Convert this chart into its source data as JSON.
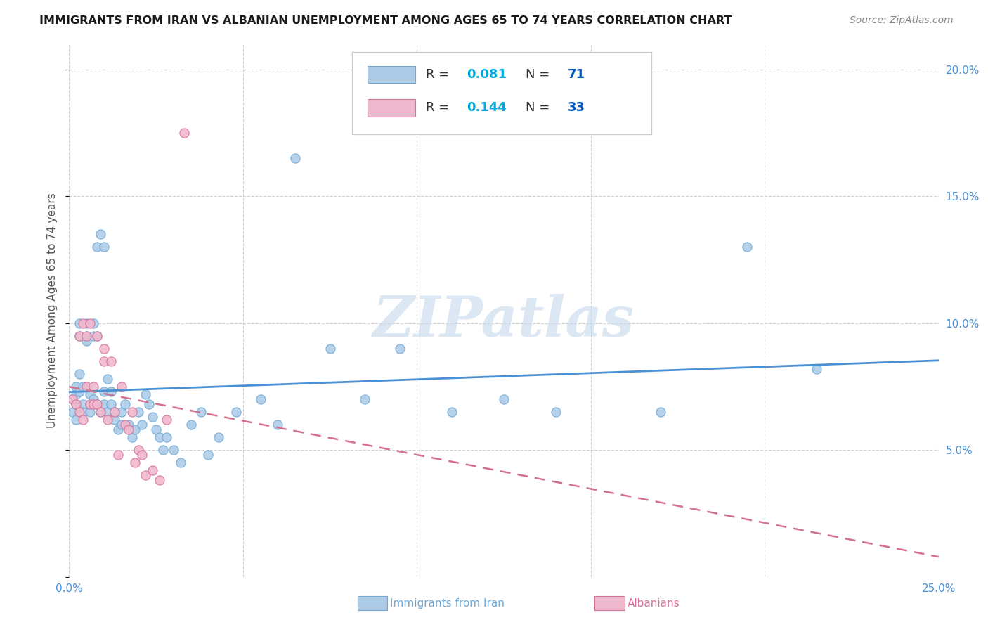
{
  "title": "IMMIGRANTS FROM IRAN VS ALBANIAN UNEMPLOYMENT AMONG AGES 65 TO 74 YEARS CORRELATION CHART",
  "source": "Source: ZipAtlas.com",
  "ylabel": "Unemployment Among Ages 65 to 74 years",
  "xlim": [
    0.0,
    0.25
  ],
  "ylim": [
    0.0,
    0.21
  ],
  "x_ticks": [
    0.0,
    0.05,
    0.1,
    0.15,
    0.2,
    0.25
  ],
  "y_ticks": [
    0.0,
    0.05,
    0.1,
    0.15,
    0.2
  ],
  "legend1_r": "0.081",
  "legend1_n": "71",
  "legend2_r": "0.144",
  "legend2_n": "33",
  "iran_fill": "#aecce8",
  "iran_edge": "#6fa8d4",
  "alb_fill": "#f0b8cc",
  "alb_edge": "#d4709a",
  "iran_line_color": "#4a90d4",
  "alb_line_color": "#d47090",
  "watermark": "ZIPatlas",
  "iran_x": [
    0.001,
    0.001,
    0.002,
    0.002,
    0.002,
    0.002,
    0.003,
    0.003,
    0.003,
    0.003,
    0.004,
    0.004,
    0.004,
    0.005,
    0.005,
    0.005,
    0.006,
    0.006,
    0.006,
    0.007,
    0.007,
    0.007,
    0.008,
    0.008,
    0.008,
    0.009,
    0.009,
    0.01,
    0.01,
    0.01,
    0.011,
    0.011,
    0.012,
    0.012,
    0.013,
    0.013,
    0.014,
    0.015,
    0.015,
    0.016,
    0.017,
    0.018,
    0.019,
    0.02,
    0.021,
    0.022,
    0.023,
    0.024,
    0.025,
    0.026,
    0.027,
    0.028,
    0.03,
    0.032,
    0.035,
    0.038,
    0.04,
    0.043,
    0.048,
    0.055,
    0.06,
    0.065,
    0.075,
    0.085,
    0.095,
    0.11,
    0.125,
    0.14,
    0.17,
    0.195,
    0.215
  ],
  "iran_y": [
    0.07,
    0.065,
    0.072,
    0.068,
    0.075,
    0.062,
    0.08,
    0.095,
    0.1,
    0.073,
    0.068,
    0.075,
    0.065,
    0.095,
    0.1,
    0.093,
    0.072,
    0.068,
    0.065,
    0.095,
    0.1,
    0.07,
    0.13,
    0.095,
    0.068,
    0.135,
    0.065,
    0.13,
    0.068,
    0.073,
    0.078,
    0.065,
    0.068,
    0.073,
    0.065,
    0.062,
    0.058,
    0.065,
    0.06,
    0.068,
    0.06,
    0.055,
    0.058,
    0.065,
    0.06,
    0.072,
    0.068,
    0.063,
    0.058,
    0.055,
    0.05,
    0.055,
    0.05,
    0.045,
    0.06,
    0.065,
    0.048,
    0.055,
    0.065,
    0.07,
    0.06,
    0.165,
    0.09,
    0.07,
    0.09,
    0.065,
    0.07,
    0.065,
    0.065,
    0.13,
    0.082
  ],
  "alb_x": [
    0.001,
    0.002,
    0.003,
    0.003,
    0.004,
    0.004,
    0.005,
    0.005,
    0.006,
    0.006,
    0.007,
    0.007,
    0.008,
    0.008,
    0.009,
    0.01,
    0.01,
    0.011,
    0.012,
    0.013,
    0.014,
    0.015,
    0.016,
    0.017,
    0.018,
    0.019,
    0.02,
    0.021,
    0.022,
    0.024,
    0.026,
    0.028,
    0.033
  ],
  "alb_y": [
    0.07,
    0.068,
    0.065,
    0.095,
    0.062,
    0.1,
    0.075,
    0.095,
    0.068,
    0.1,
    0.075,
    0.068,
    0.095,
    0.068,
    0.065,
    0.09,
    0.085,
    0.062,
    0.085,
    0.065,
    0.048,
    0.075,
    0.06,
    0.058,
    0.065,
    0.045,
    0.05,
    0.048,
    0.04,
    0.042,
    0.038,
    0.062,
    0.175
  ]
}
